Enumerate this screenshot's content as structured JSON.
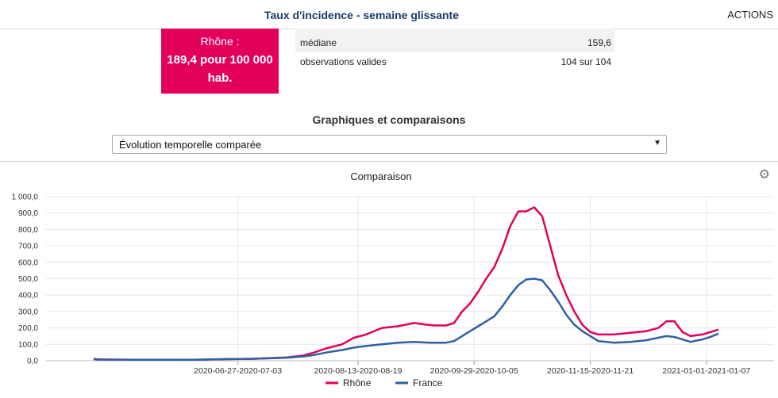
{
  "header": {
    "title": "Taux d'incidence - semaine glissante",
    "actions_label": "ACTIONS"
  },
  "summary": {
    "region": "Rhône :",
    "value_text": "189,4 pour 100 000 hab."
  },
  "stats": {
    "rows": [
      {
        "label": "médiane",
        "value": "159,6"
      },
      {
        "label": "observations valides",
        "value": "104 sur 104"
      }
    ]
  },
  "section": {
    "title": "Graphiques et comparaisons"
  },
  "select": {
    "value": "Évolution temporelle comparée"
  },
  "chart_panel": {
    "title": "Comparaison",
    "settings_icon": "gear-icon"
  },
  "chart_data": {
    "type": "line",
    "title": "Comparaison",
    "xlabel": "",
    "ylabel": "",
    "ylim": [
      0,
      1000
    ],
    "yticks": [
      "0,0",
      "100,0",
      "200,0",
      "300,0",
      "400,0",
      "500,0",
      "600,0",
      "700,0",
      "800,0",
      "900,0",
      "1 000,0"
    ],
    "xtick_labels": [
      "2020-06-27-2020-07-03",
      "2020-08-13-2020-08-19",
      "2020-09-29-2020-10-05",
      "2020-11-15-2020-11-21",
      "2021-01-01-2021-01-07"
    ],
    "xtick_index": [
      25,
      52,
      79,
      106,
      133
    ],
    "x_count": 136,
    "grid": true,
    "legend": "bottom-center",
    "series": [
      {
        "name": "Rhône",
        "color": "#e2005a",
        "keypoints": [
          [
            0,
            12
          ],
          [
            1,
            8
          ],
          [
            10,
            6
          ],
          [
            25,
            6
          ],
          [
            30,
            8
          ],
          [
            40,
            12
          ],
          [
            48,
            20
          ],
          [
            52,
            30
          ],
          [
            55,
            50
          ],
          [
            58,
            75
          ],
          [
            62,
            100
          ],
          [
            65,
            140
          ],
          [
            68,
            160
          ],
          [
            72,
            200
          ],
          [
            76,
            210
          ],
          [
            80,
            230
          ],
          [
            83,
            220
          ],
          [
            85,
            215
          ],
          [
            88,
            215
          ],
          [
            90,
            230
          ],
          [
            92,
            300
          ],
          [
            94,
            350
          ],
          [
            96,
            420
          ],
          [
            98,
            500
          ],
          [
            100,
            570
          ],
          [
            102,
            680
          ],
          [
            104,
            820
          ],
          [
            106,
            910
          ],
          [
            108,
            910
          ],
          [
            110,
            935
          ],
          [
            112,
            880
          ],
          [
            114,
            700
          ],
          [
            116,
            520
          ],
          [
            118,
            400
          ],
          [
            120,
            300
          ],
          [
            122,
            220
          ],
          [
            124,
            175
          ],
          [
            126,
            160
          ],
          [
            130,
            160
          ],
          [
            134,
            170
          ],
          [
            138,
            180
          ],
          [
            141,
            200
          ],
          [
            143,
            240
          ],
          [
            145,
            240
          ],
          [
            147,
            175
          ],
          [
            149,
            150
          ],
          [
            152,
            160
          ],
          [
            154,
            175
          ],
          [
            156,
            190
          ]
        ]
      },
      {
        "name": "France",
        "color": "#2f60a0",
        "keypoints": [
          [
            0,
            10
          ],
          [
            1,
            7
          ],
          [
            10,
            6
          ],
          [
            25,
            6
          ],
          [
            30,
            8
          ],
          [
            40,
            12
          ],
          [
            48,
            18
          ],
          [
            52,
            25
          ],
          [
            55,
            35
          ],
          [
            58,
            50
          ],
          [
            62,
            65
          ],
          [
            65,
            80
          ],
          [
            68,
            90
          ],
          [
            72,
            100
          ],
          [
            76,
            110
          ],
          [
            80,
            115
          ],
          [
            84,
            110
          ],
          [
            88,
            110
          ],
          [
            90,
            120
          ],
          [
            92,
            150
          ],
          [
            94,
            180
          ],
          [
            96,
            210
          ],
          [
            98,
            240
          ],
          [
            100,
            270
          ],
          [
            102,
            330
          ],
          [
            104,
            400
          ],
          [
            106,
            460
          ],
          [
            108,
            495
          ],
          [
            110,
            500
          ],
          [
            112,
            490
          ],
          [
            114,
            430
          ],
          [
            116,
            360
          ],
          [
            118,
            280
          ],
          [
            120,
            220
          ],
          [
            122,
            180
          ],
          [
            124,
            150
          ],
          [
            126,
            120
          ],
          [
            130,
            110
          ],
          [
            134,
            115
          ],
          [
            138,
            125
          ],
          [
            141,
            140
          ],
          [
            143,
            150
          ],
          [
            145,
            145
          ],
          [
            147,
            130
          ],
          [
            149,
            115
          ],
          [
            152,
            130
          ],
          [
            154,
            145
          ],
          [
            156,
            165
          ]
        ]
      }
    ]
  }
}
